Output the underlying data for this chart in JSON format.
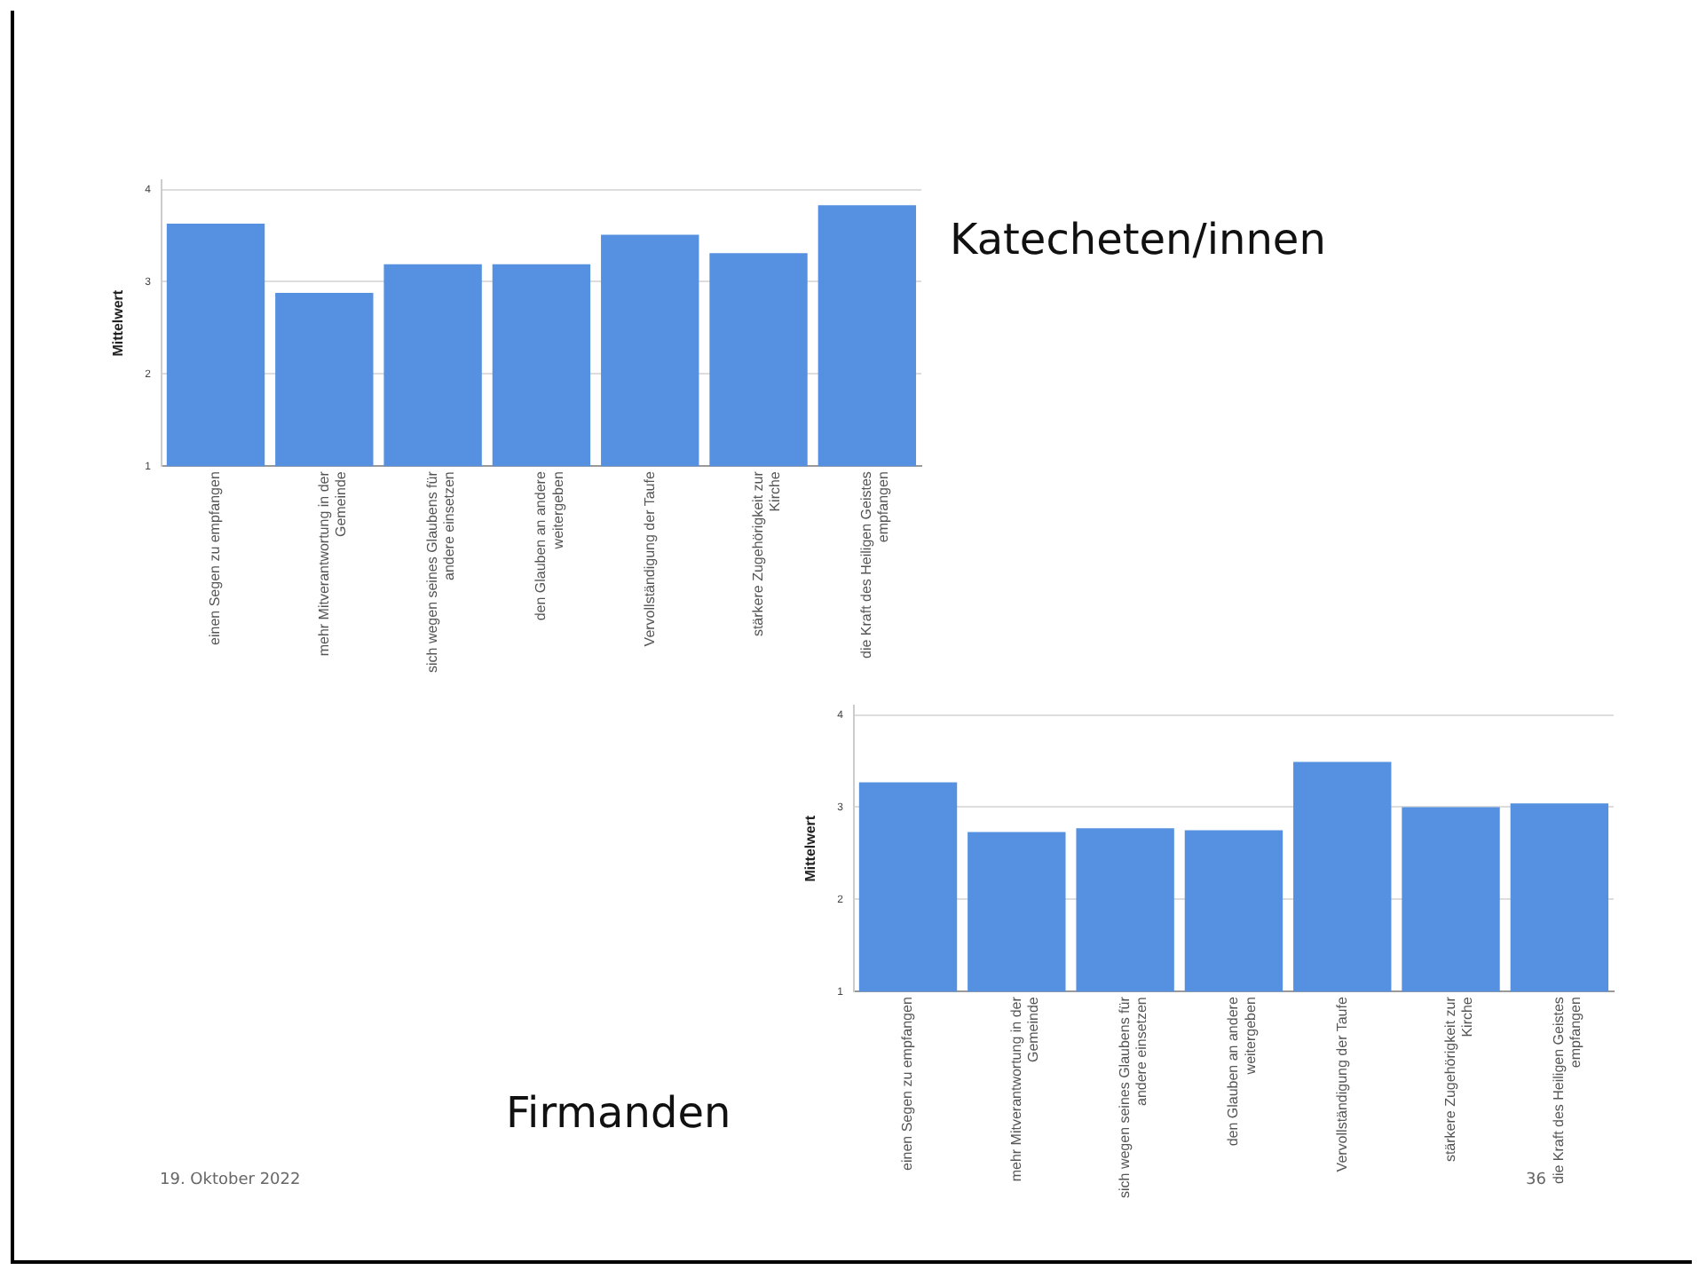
{
  "chart_data": [
    {
      "type": "bar",
      "ylabel": "Mittelwert",
      "annotations": [
        "Katecheten/innen"
      ],
      "categories": [
        "einen Segen zu empfangen",
        "mehr Mitverantwortung in der Gemeinde",
        "sich wegen seines Glaubens für andere einsetzen",
        "den Glauben an andere weitergeben",
        "Vervollständigung der Taufe",
        "stärkere Zugehörigkeit zur Kirche",
        "die Kraft des Heiligen Geistes empfangen"
      ],
      "values": [
        3.63,
        2.88,
        3.19,
        3.19,
        3.51,
        3.31,
        3.83
      ],
      "color": "#5591e0",
      "ylim": [
        1,
        4.1
      ],
      "yticks": [
        1,
        2,
        3,
        4
      ],
      "grid": "y",
      "legend": false
    },
    {
      "type": "bar",
      "ylabel": "Mittelwert",
      "categories": [
        "einen Segen zu empfangen",
        "mehr Mitverantwortung in der Gemeinde",
        "sich wegen seines Glaubens für andere einsetzen",
        "den Glauben an andere weitergeben",
        "Vervollständigung der Taufe",
        "stärkere Zugehörigkeit zur Kirche",
        "die Kraft des Heiligen Geistes empfangen"
      ],
      "values": [
        3.27,
        2.73,
        2.77,
        2.75,
        3.49,
        3.0,
        3.04
      ],
      "color": "#5591e0",
      "ylim": [
        1,
        4.1
      ],
      "yticks": [
        1,
        2,
        3,
        4
      ],
      "grid": "y",
      "legend": false,
      "annotations": [
        "Firmanden",
        "19. Oktober 2022",
        "36"
      ]
    }
  ]
}
